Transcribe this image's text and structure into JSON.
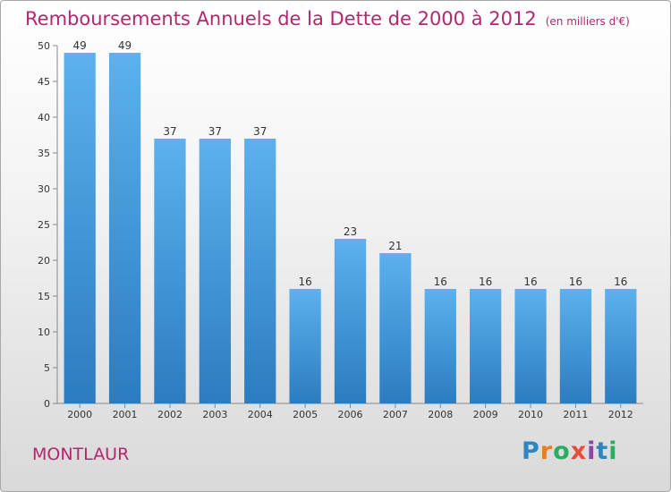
{
  "chart_data": {
    "type": "bar",
    "title": "Remboursements Annuels de la Dette de 2000 à 2012",
    "unit": "(en milliers d'€)",
    "categories": [
      "2000",
      "2001",
      "2002",
      "2003",
      "2004",
      "2005",
      "2006",
      "2007",
      "2008",
      "2009",
      "2010",
      "2011",
      "2012"
    ],
    "values": [
      49,
      49,
      37,
      37,
      37,
      16,
      23,
      21,
      16,
      16,
      16,
      16,
      16
    ],
    "ylim": [
      0,
      50
    ],
    "yticks": [
      0,
      5,
      10,
      15,
      20,
      25,
      30,
      35,
      40,
      45,
      50
    ],
    "xlabel": "",
    "ylabel": "",
    "grid": false,
    "bar_color": "#4a9fe0"
  },
  "commune": "MONTLAUR",
  "logo": {
    "letters": [
      "P",
      "r",
      "o",
      "x",
      "i",
      "t",
      "i"
    ],
    "colors": [
      "#2e86c1",
      "#e67e22",
      "#27ae60",
      "#e74c3c",
      "#8e44ad",
      "#2e86c1",
      "#27ae60"
    ]
  }
}
